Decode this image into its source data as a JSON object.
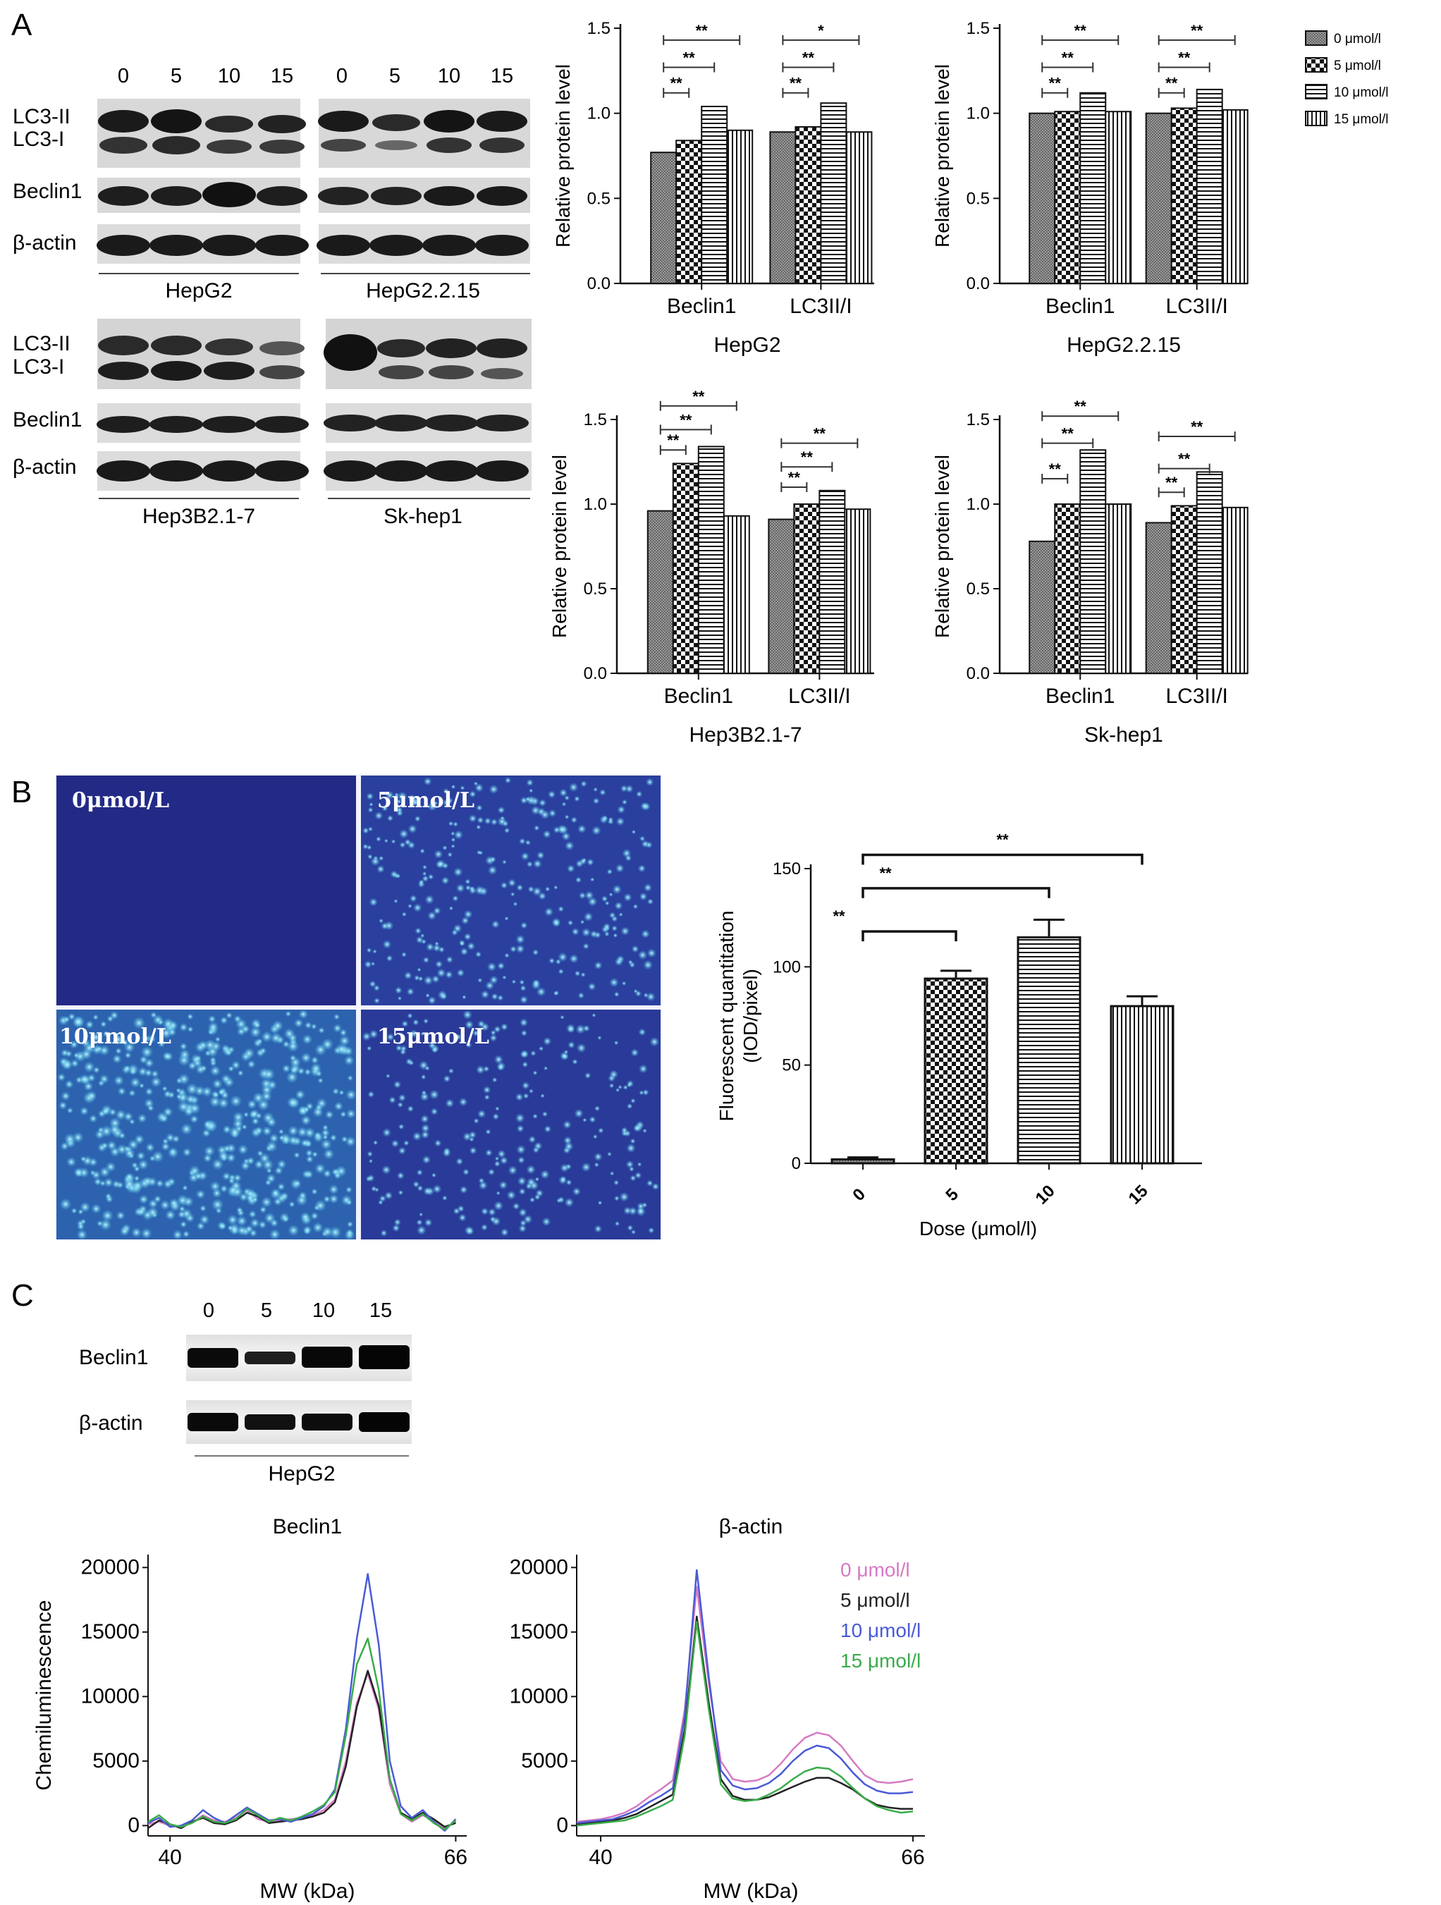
{
  "panel_labels": [
    "A",
    "B",
    "C"
  ],
  "panelA": {
    "lanes": [
      "0",
      "5",
      "10",
      "15"
    ],
    "blots": [
      {
        "cell": "HepG2",
        "rows": [
          "LC3-II",
          "LC3-I",
          "Beclin1",
          "β-actin"
        ]
      },
      {
        "cell": "HepG2.2.15",
        "rows": []
      },
      {
        "cell": "Hep3B2.1-7",
        "rows": [
          "LC3-II",
          "LC3-I",
          "Beclin1",
          "β-actin"
        ]
      },
      {
        "cell": "Sk-hep1",
        "rows": []
      }
    ],
    "legend": [
      "0 μmol/l",
      "5 μmol/l",
      "10 μmol/l",
      "15 μmol/l"
    ]
  },
  "panelB": {
    "micrographs": [
      "0μmol/L",
      "5μmol/L",
      "10μmol/L",
      "15μmol/L"
    ]
  },
  "panelC": {
    "lanes": [
      "0",
      "5",
      "10",
      "15"
    ],
    "rows": [
      "Beclin1",
      "β-actin"
    ],
    "cell": "HepG2",
    "legend": [
      "0 μmol/l",
      "5 μmol/l",
      "10 μmol/l",
      "15 μmol/l"
    ],
    "legend_colors": [
      "#d67ac4",
      "#222222",
      "#4a5ad6",
      "#3aab4a"
    ]
  },
  "chart_data": [
    {
      "type": "bar",
      "id": "hepg2",
      "title": "HepG2",
      "ylabel": "Relative protein level",
      "ylim": [
        0,
        1.5
      ],
      "yticks": [
        "0.0",
        "0.5",
        "1.0",
        "1.5"
      ],
      "categories": [
        "Beclin1",
        "LC3II/I"
      ],
      "series": [
        {
          "name": "0 μmol/l",
          "values": [
            0.77,
            0.89
          ]
        },
        {
          "name": "5 μmol/l",
          "values": [
            0.84,
            0.92
          ]
        },
        {
          "name": "10 μmol/l",
          "values": [
            1.04,
            1.06
          ]
        },
        {
          "name": "15 μmol/l",
          "values": [
            0.9,
            0.89
          ]
        }
      ],
      "significance": [
        {
          "category": 0,
          "from": 0,
          "to": 1,
          "level": 1.12,
          "label": "**"
        },
        {
          "category": 0,
          "from": 0,
          "to": 2,
          "level": 1.27,
          "label": "**"
        },
        {
          "category": 0,
          "from": 0,
          "to": 3,
          "level": 1.43,
          "label": "**"
        },
        {
          "category": 1,
          "from": 0,
          "to": 1,
          "level": 1.12,
          "label": "**"
        },
        {
          "category": 1,
          "from": 0,
          "to": 2,
          "level": 1.27,
          "label": "**"
        },
        {
          "category": 1,
          "from": 0,
          "to": 3,
          "level": 1.43,
          "label": "*"
        }
      ]
    },
    {
      "type": "bar",
      "id": "hepg2215",
      "title": "HepG2.2.15",
      "ylabel": "Relative protein level",
      "ylim": [
        0,
        1.5
      ],
      "yticks": [
        "0.0",
        "0.5",
        "1.0",
        "1.5"
      ],
      "categories": [
        "Beclin1",
        "LC3II/I"
      ],
      "series": [
        {
          "name": "0 μmol/l",
          "values": [
            1.0,
            1.0
          ]
        },
        {
          "name": "5 μmol/l",
          "values": [
            1.01,
            1.03
          ]
        },
        {
          "name": "10 μmol/l",
          "values": [
            1.12,
            1.14
          ]
        },
        {
          "name": "15 μmol/l",
          "values": [
            1.01,
            1.02
          ]
        }
      ],
      "significance": [
        {
          "category": 0,
          "from": 0,
          "to": 1,
          "level": 1.12,
          "label": "**"
        },
        {
          "category": 0,
          "from": 0,
          "to": 2,
          "level": 1.27,
          "label": "**"
        },
        {
          "category": 0,
          "from": 0,
          "to": 3,
          "level": 1.43,
          "label": "**"
        },
        {
          "category": 1,
          "from": 0,
          "to": 1,
          "level": 1.12,
          "label": "**"
        },
        {
          "category": 1,
          "from": 0,
          "to": 2,
          "level": 1.27,
          "label": "**"
        },
        {
          "category": 1,
          "from": 0,
          "to": 3,
          "level": 1.43,
          "label": "**"
        }
      ]
    },
    {
      "type": "bar",
      "id": "hep3b",
      "title": "Hep3B2.1-7",
      "ylabel": "Relative protein level",
      "ylim": [
        0,
        1.5
      ],
      "yticks": [
        "0.0",
        "0.5",
        "1.0",
        "1.5"
      ],
      "categories": [
        "Beclin1",
        "LC3II/I"
      ],
      "series": [
        {
          "name": "0 μmol/l",
          "values": [
            0.96,
            0.91
          ]
        },
        {
          "name": "5 μmol/l",
          "values": [
            1.24,
            1.0
          ]
        },
        {
          "name": "10 μmol/l",
          "values": [
            1.34,
            1.08
          ]
        },
        {
          "name": "15 μmol/l",
          "values": [
            0.93,
            0.97
          ]
        }
      ],
      "significance": [
        {
          "category": 0,
          "from": 0,
          "to": 1,
          "level": 1.32,
          "label": "**"
        },
        {
          "category": 0,
          "from": 0,
          "to": 2,
          "level": 1.44,
          "label": "**"
        },
        {
          "category": 0,
          "from": 0,
          "to": 3,
          "level": 1.58,
          "label": "**"
        },
        {
          "category": 1,
          "from": 0,
          "to": 1,
          "level": 1.1,
          "label": "**"
        },
        {
          "category": 1,
          "from": 0,
          "to": 2,
          "level": 1.22,
          "label": "**"
        },
        {
          "category": 1,
          "from": 0,
          "to": 3,
          "level": 1.36,
          "label": "**"
        }
      ]
    },
    {
      "type": "bar",
      "id": "skhep1",
      "title": "Sk-hep1",
      "ylabel": "Relative protein level",
      "ylim": [
        0,
        1.5
      ],
      "yticks": [
        "0.0",
        "0.5",
        "1.0",
        "1.5"
      ],
      "categories": [
        "Beclin1",
        "LC3II/I"
      ],
      "series": [
        {
          "name": "0 μmol/l",
          "values": [
            0.78,
            0.89
          ]
        },
        {
          "name": "5 μmol/l",
          "values": [
            1.0,
            0.99
          ]
        },
        {
          "name": "10 μmol/l",
          "values": [
            1.32,
            1.19
          ]
        },
        {
          "name": "15 μmol/l",
          "values": [
            1.0,
            0.98
          ]
        }
      ],
      "significance": [
        {
          "category": 0,
          "from": 0,
          "to": 1,
          "level": 1.15,
          "label": "**"
        },
        {
          "category": 0,
          "from": 0,
          "to": 2,
          "level": 1.36,
          "label": "**"
        },
        {
          "category": 0,
          "from": 0,
          "to": 3,
          "level": 1.52,
          "label": "**"
        },
        {
          "category": 1,
          "from": 0,
          "to": 1,
          "level": 1.07,
          "label": "**"
        },
        {
          "category": 1,
          "from": 0,
          "to": 2,
          "level": 1.21,
          "label": "**"
        },
        {
          "category": 1,
          "from": 0,
          "to": 3,
          "level": 1.4,
          "label": "**"
        }
      ]
    },
    {
      "type": "bar",
      "id": "fluor",
      "xlabel": "Dose (μmol/l)",
      "ylabel": "Fluorescent quantitation (IOD/pixel)",
      "ylim": [
        0,
        150
      ],
      "yticks": [
        "0",
        "50",
        "100",
        "150"
      ],
      "categories": [
        "0",
        "5",
        "10",
        "15"
      ],
      "values": [
        2,
        94,
        115,
        80
      ],
      "errors": [
        1,
        4,
        9,
        5
      ],
      "significance": [
        {
          "from": 0,
          "to": 1,
          "level": 118,
          "label": "**"
        },
        {
          "from": 0,
          "to": 2,
          "level": 140,
          "label": "**"
        },
        {
          "from": 0,
          "to": 3,
          "level": 157,
          "label": "**"
        }
      ]
    },
    {
      "type": "line",
      "id": "trace_beclin1",
      "title": "Beclin1",
      "xlabel": "MW (kDa)",
      "ylabel": "Chemiluminescence",
      "xlim": [
        38,
        67
      ],
      "xticks": [
        40,
        66
      ],
      "ylim": [
        -800,
        21000
      ],
      "yticks": [
        0,
        5000,
        10000,
        15000,
        20000
      ],
      "series": [
        {
          "name": "0 μmol/l",
          "color": "#d67ac4",
          "x": [
            38,
            39,
            40,
            41,
            42,
            43,
            44,
            45,
            46,
            47,
            48,
            49,
            50,
            51,
            52,
            53,
            54,
            55,
            56,
            57,
            58,
            59,
            60,
            61,
            62,
            63,
            64,
            65,
            66
          ],
          "y": [
            100,
            300,
            0,
            -100,
            200,
            800,
            400,
            300,
            600,
            1200,
            500,
            300,
            400,
            500,
            600,
            800,
            1200,
            2000,
            5000,
            9500,
            11800,
            9000,
            3200,
            900,
            300,
            800,
            400,
            -200,
            300
          ]
        },
        {
          "name": "5 μmol/l",
          "color": "#222222",
          "x": [
            38,
            39,
            40,
            41,
            42,
            43,
            44,
            45,
            46,
            47,
            48,
            49,
            50,
            51,
            52,
            53,
            54,
            55,
            56,
            57,
            58,
            59,
            60,
            61,
            62,
            63,
            64,
            65,
            66
          ],
          "y": [
            -200,
            400,
            100,
            -200,
            300,
            600,
            200,
            100,
            400,
            1000,
            700,
            200,
            300,
            400,
            500,
            700,
            1000,
            1800,
            4600,
            9200,
            12000,
            9300,
            3600,
            1000,
            500,
            1000,
            500,
            -100,
            200
          ]
        },
        {
          "name": "10 μmol/l",
          "color": "#4a5ad6",
          "x": [
            38,
            39,
            40,
            41,
            42,
            43,
            44,
            45,
            46,
            47,
            48,
            49,
            50,
            51,
            52,
            53,
            54,
            55,
            56,
            57,
            58,
            59,
            60,
            61,
            62,
            63,
            64,
            65,
            66
          ],
          "y": [
            200,
            600,
            -100,
            0,
            400,
            1200,
            600,
            200,
            800,
            1400,
            900,
            400,
            500,
            300,
            600,
            900,
            1500,
            2800,
            7500,
            14500,
            19500,
            14000,
            5000,
            1500,
            600,
            1200,
            300,
            -400,
            500
          ]
        },
        {
          "name": "15 μmol/l",
          "color": "#3aab4a",
          "x": [
            38,
            39,
            40,
            41,
            42,
            43,
            44,
            45,
            46,
            47,
            48,
            49,
            50,
            51,
            52,
            53,
            54,
            55,
            56,
            57,
            58,
            59,
            60,
            61,
            62,
            63,
            64,
            65,
            66
          ],
          "y": [
            300,
            800,
            100,
            -100,
            200,
            700,
            300,
            200,
            500,
            1300,
            800,
            300,
            600,
            400,
            700,
            1100,
            1600,
            2600,
            7000,
            12500,
            14500,
            10500,
            3600,
            900,
            400,
            900,
            200,
            -300,
            400
          ]
        }
      ]
    },
    {
      "type": "line",
      "id": "trace_actin",
      "title": "β-actin",
      "xlabel": "MW (kDa)",
      "xlim": [
        38,
        67
      ],
      "xticks": [
        40,
        66
      ],
      "ylim": [
        -800,
        21000
      ],
      "yticks": [
        0,
        5000,
        10000,
        15000,
        20000
      ],
      "series": [
        {
          "name": "0 μmol/l",
          "color": "#d67ac4",
          "x": [
            38,
            39,
            40,
            41,
            42,
            43,
            44,
            45,
            46,
            47,
            48,
            49,
            50,
            51,
            52,
            53,
            54,
            55,
            56,
            57,
            58,
            59,
            60,
            61,
            62,
            63,
            64,
            65,
            66
          ],
          "y": [
            300,
            400,
            500,
            700,
            1000,
            1500,
            2200,
            2800,
            3500,
            9000,
            18500,
            11000,
            5000,
            3600,
            3400,
            3500,
            3900,
            4800,
            5900,
            6800,
            7200,
            7000,
            6200,
            5000,
            3900,
            3400,
            3300,
            3400,
            3600
          ]
        },
        {
          "name": "5 μmol/l",
          "color": "#222222",
          "x": [
            38,
            39,
            40,
            41,
            42,
            43,
            44,
            45,
            46,
            47,
            48,
            49,
            50,
            51,
            52,
            53,
            54,
            55,
            56,
            57,
            58,
            59,
            60,
            61,
            62,
            63,
            64,
            65,
            66
          ],
          "y": [
            100,
            200,
            300,
            400,
            600,
            900,
            1400,
            1900,
            2400,
            7500,
            16200,
            9500,
            3600,
            2300,
            2000,
            2000,
            2200,
            2600,
            3000,
            3400,
            3700,
            3700,
            3300,
            2800,
            2100,
            1600,
            1400,
            1300,
            1300
          ]
        },
        {
          "name": "10 μmol/l",
          "color": "#4a5ad6",
          "x": [
            38,
            39,
            40,
            41,
            42,
            43,
            44,
            45,
            46,
            47,
            48,
            49,
            50,
            51,
            52,
            53,
            54,
            55,
            56,
            57,
            58,
            59,
            60,
            61,
            62,
            63,
            64,
            65,
            66
          ],
          "y": [
            200,
            300,
            400,
            500,
            800,
            1200,
            1800,
            2300,
            2900,
            8500,
            19800,
            11500,
            4300,
            3100,
            2800,
            2900,
            3300,
            4000,
            5000,
            5800,
            6200,
            6000,
            5200,
            4100,
            3200,
            2700,
            2500,
            2500,
            2600
          ]
        },
        {
          "name": "15 μmol/l",
          "color": "#3aab4a",
          "x": [
            38,
            39,
            40,
            41,
            42,
            43,
            44,
            45,
            46,
            47,
            48,
            49,
            50,
            51,
            52,
            53,
            54,
            55,
            56,
            57,
            58,
            59,
            60,
            61,
            62,
            63,
            64,
            65,
            66
          ],
          "y": [
            0,
            100,
            200,
            300,
            400,
            700,
            1100,
            1500,
            2000,
            7000,
            15800,
            9000,
            3200,
            2100,
            1900,
            2000,
            2400,
            2900,
            3600,
            4200,
            4500,
            4400,
            3800,
            2900,
            2100,
            1500,
            1200,
            1000,
            1100
          ]
        }
      ]
    }
  ]
}
